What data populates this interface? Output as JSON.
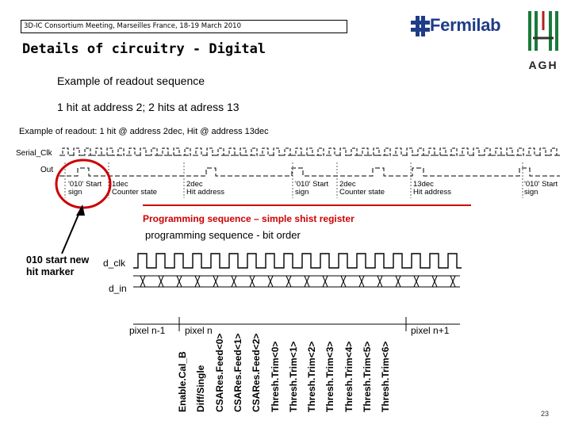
{
  "header": {
    "meeting": "3D-IC Consortium Meeting, Marseilles France, 18-19 March 2010",
    "title": "Details of circuitry - Digital"
  },
  "logos": {
    "fermilab": "Fermilab",
    "agh": "AGH",
    "fermilab_color": "#1f3c88",
    "agh_color": "#1a7a3a"
  },
  "subtitles": {
    "line1": "Example of readout sequence",
    "line2": "1 hit at address 2; 2 hits at adress 13"
  },
  "readout": {
    "label": "Example of readout: 1 hit @ address 2dec, Hit @ address 13dec",
    "signals": [
      "Serial_Clk",
      "Out"
    ],
    "annotations": [
      {
        "top": "'010' Start",
        "bottom": "sign"
      },
      {
        "top": "1dec",
        "bottom": "Counter state"
      },
      {
        "top": "2dec",
        "bottom": "Hit address"
      },
      {
        "top": "'010' Start",
        "bottom": "sign"
      },
      {
        "top": "2dec",
        "bottom": "Counter state"
      },
      {
        "top": "13dec",
        "bottom": "Hit address"
      },
      {
        "top": "'010' Start",
        "bottom": "sign"
      }
    ]
  },
  "programming": {
    "title": "Programming sequence – simple shist register",
    "subtitle": "programming sequence - bit order",
    "signals": [
      "d_clk",
      "d_in"
    ],
    "pixel_labels": [
      "pixel n-1",
      "pixel n",
      "pixel n+1"
    ],
    "bits": [
      "Enable.Cal_B",
      "Diff/Single",
      "CSARes.Feed<0>",
      "CSARes.Feed<1>",
      "CSARes.Feed<2>",
      "Thresh.Trim<0>",
      "Thresh.Trim<1>",
      "Thresh.Trim<2>",
      "Thresh.Trim<3>",
      "Thresh.Trim<4>",
      "Thresh.Trim<5>",
      "Thresh.Trim<6>"
    ]
  },
  "marker_note": "010 start new hit marker",
  "page_number": "23",
  "accent_color": "#cc0000"
}
